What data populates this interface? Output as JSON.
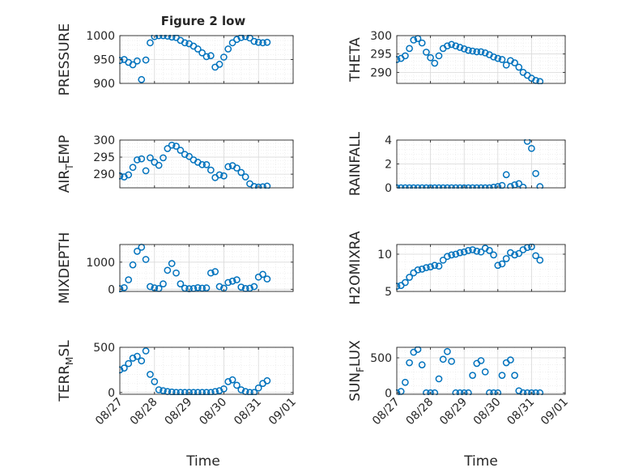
{
  "figure": {
    "title": "Figure 2 low",
    "xlabel": "Time",
    "marker_color": "#0072BD",
    "grid_color": "#d9d9d9",
    "axis_color": "#262626"
  },
  "x_tick_labels": [
    "08/27",
    "08/28",
    "08/29",
    "08/30",
    "08/31",
    "09/01"
  ],
  "chart_data": [
    {
      "type": "scatter",
      "ylabel": "PRESSURE",
      "ylim": [
        900,
        1000
      ],
      "yticks": [
        900,
        950,
        1000
      ],
      "x_tick_labels_shown": false,
      "grid": true,
      "x": [
        "08/27 00:00",
        "08/27 03:00",
        "08/27 06:00",
        "08/27 09:00",
        "08/27 12:00",
        "08/27 15:00",
        "08/27 18:00",
        "08/27 21:00",
        "08/28 00:00",
        "08/28 03:00",
        "08/28 06:00",
        "08/28 09:00",
        "08/28 12:00",
        "08/28 15:00",
        "08/28 18:00",
        "08/28 21:00",
        "08/29 00:00",
        "08/29 03:00",
        "08/29 06:00",
        "08/29 09:00",
        "08/29 12:00",
        "08/29 15:00",
        "08/29 18:00",
        "08/29 21:00",
        "08/30 00:00",
        "08/30 03:00",
        "08/30 06:00",
        "08/30 09:00",
        "08/30 12:00",
        "08/30 15:00",
        "08/30 18:00",
        "08/30 21:00",
        "08/31 00:00",
        "08/31 03:00",
        "08/31 06:00"
      ],
      "y": [
        948,
        950,
        944,
        939,
        947,
        908,
        949,
        985,
        998,
        1000,
        1000,
        999,
        997,
        996,
        990,
        985,
        983,
        978,
        972,
        964,
        956,
        958,
        934,
        940,
        955,
        972,
        985,
        992,
        996,
        998,
        995,
        988,
        986,
        985,
        986
      ]
    },
    {
      "type": "scatter",
      "ylabel": "THETA",
      "ylim": [
        287,
        300
      ],
      "yticks": [
        290,
        295,
        300
      ],
      "x_tick_labels_shown": false,
      "grid": true,
      "x": [
        "08/27 00:00",
        "08/27 03:00",
        "08/27 06:00",
        "08/27 09:00",
        "08/27 12:00",
        "08/27 15:00",
        "08/27 18:00",
        "08/27 21:00",
        "08/28 00:00",
        "08/28 03:00",
        "08/28 06:00",
        "08/28 09:00",
        "08/28 12:00",
        "08/28 15:00",
        "08/28 18:00",
        "08/28 21:00",
        "08/29 00:00",
        "08/29 03:00",
        "08/29 06:00",
        "08/29 09:00",
        "08/29 12:00",
        "08/29 15:00",
        "08/29 18:00",
        "08/29 21:00",
        "08/30 00:00",
        "08/30 03:00",
        "08/30 06:00",
        "08/30 09:00",
        "08/30 12:00",
        "08/30 15:00",
        "08/30 18:00",
        "08/30 21:00",
        "08/31 00:00",
        "08/31 03:00",
        "08/31 06:00"
      ],
      "y": [
        293.5,
        293.8,
        294.5,
        296.5,
        298.8,
        299.2,
        298.0,
        295.5,
        294.0,
        292.5,
        294.5,
        296.5,
        297.2,
        297.6,
        297.2,
        296.8,
        296.4,
        296.0,
        295.8,
        295.6,
        295.6,
        295.3,
        294.8,
        294.2,
        293.8,
        293.5,
        292.0,
        293.2,
        292.6,
        291.4,
        290.0,
        289.2,
        288.4,
        287.8,
        287.5
      ]
    },
    {
      "type": "scatter",
      "ylabel": "AIR_TEMP",
      "ylim": [
        286,
        300
      ],
      "yticks": [
        290,
        295,
        300
      ],
      "x_tick_labels_shown": false,
      "grid": true,
      "x": [
        "08/27 00:00",
        "08/27 03:00",
        "08/27 06:00",
        "08/27 09:00",
        "08/27 12:00",
        "08/27 15:00",
        "08/27 18:00",
        "08/27 21:00",
        "08/28 00:00",
        "08/28 03:00",
        "08/28 06:00",
        "08/28 09:00",
        "08/28 12:00",
        "08/28 15:00",
        "08/28 18:00",
        "08/28 21:00",
        "08/29 00:00",
        "08/29 03:00",
        "08/29 06:00",
        "08/29 09:00",
        "08/29 12:00",
        "08/29 15:00",
        "08/29 18:00",
        "08/29 21:00",
        "08/30 00:00",
        "08/30 03:00",
        "08/30 06:00",
        "08/30 09:00",
        "08/30 12:00",
        "08/30 15:00",
        "08/30 18:00",
        "08/30 21:00",
        "08/31 00:00",
        "08/31 03:00",
        "08/31 06:00"
      ],
      "y": [
        289.5,
        289.2,
        289.8,
        292.0,
        294.2,
        294.5,
        291.0,
        294.8,
        293.5,
        292.6,
        294.8,
        297.5,
        298.5,
        298.2,
        297.0,
        295.8,
        295.2,
        294.2,
        293.5,
        292.8,
        292.8,
        291.2,
        289.0,
        289.8,
        289.5,
        292.2,
        292.5,
        291.8,
        290.5,
        289.2,
        287.2,
        286.4,
        286.2,
        286.3,
        286.5
      ]
    },
    {
      "type": "scatter",
      "ylabel": "RAINFALL",
      "ylim": [
        0,
        4
      ],
      "yticks": [
        0,
        2,
        4
      ],
      "x_tick_labels_shown": false,
      "grid": true,
      "x": [
        "08/27 00:00",
        "08/27 03:00",
        "08/27 06:00",
        "08/27 09:00",
        "08/27 12:00",
        "08/27 15:00",
        "08/27 18:00",
        "08/27 21:00",
        "08/28 00:00",
        "08/28 03:00",
        "08/28 06:00",
        "08/28 09:00",
        "08/28 12:00",
        "08/28 15:00",
        "08/28 18:00",
        "08/28 21:00",
        "08/29 00:00",
        "08/29 03:00",
        "08/29 06:00",
        "08/29 09:00",
        "08/29 12:00",
        "08/29 15:00",
        "08/29 18:00",
        "08/29 21:00",
        "08/30 00:00",
        "08/30 03:00",
        "08/30 06:00",
        "08/30 09:00",
        "08/30 12:00",
        "08/30 15:00",
        "08/30 18:00",
        "08/30 21:00",
        "08/31 00:00",
        "08/31 03:00",
        "08/31 06:00"
      ],
      "y": [
        0,
        0,
        0,
        0,
        0,
        0,
        0,
        0,
        0,
        0,
        0,
        0,
        0,
        0,
        0,
        0,
        0,
        0,
        0,
        0,
        0,
        0,
        0,
        0.05,
        0.1,
        0.2,
        1.1,
        0.1,
        0.25,
        0.35,
        0.05,
        3.9,
        3.3,
        1.2,
        0.1
      ]
    },
    {
      "type": "scatter",
      "ylabel": "MIXDEPTH",
      "ylim": [
        -80,
        1650
      ],
      "yticks": [
        0,
        1000
      ],
      "x_tick_labels_shown": false,
      "grid": true,
      "x": [
        "08/27 00:00",
        "08/27 03:00",
        "08/27 06:00",
        "08/27 09:00",
        "08/27 12:00",
        "08/27 15:00",
        "08/27 18:00",
        "08/27 21:00",
        "08/28 00:00",
        "08/28 03:00",
        "08/28 06:00",
        "08/28 09:00",
        "08/28 12:00",
        "08/28 15:00",
        "08/28 18:00",
        "08/28 21:00",
        "08/29 00:00",
        "08/29 03:00",
        "08/29 06:00",
        "08/29 09:00",
        "08/29 12:00",
        "08/29 15:00",
        "08/29 18:00",
        "08/29 21:00",
        "08/30 00:00",
        "08/30 03:00",
        "08/30 06:00",
        "08/30 09:00",
        "08/30 12:00",
        "08/30 15:00",
        "08/30 18:00",
        "08/30 21:00",
        "08/31 00:00",
        "08/31 03:00",
        "08/31 06:00"
      ],
      "y": [
        20,
        60,
        350,
        900,
        1400,
        1550,
        1100,
        100,
        50,
        30,
        200,
        700,
        950,
        600,
        200,
        40,
        20,
        30,
        60,
        40,
        50,
        600,
        650,
        100,
        40,
        250,
        300,
        350,
        80,
        30,
        40,
        100,
        450,
        550,
        380
      ]
    },
    {
      "type": "scatter",
      "ylabel": "H2OMIXRA",
      "ylim": [
        5,
        11.3
      ],
      "yticks": [
        5,
        10
      ],
      "x_tick_labels_shown": false,
      "grid": true,
      "x": [
        "08/27 00:00",
        "08/27 03:00",
        "08/27 06:00",
        "08/27 09:00",
        "08/27 12:00",
        "08/27 15:00",
        "08/27 18:00",
        "08/27 21:00",
        "08/28 00:00",
        "08/28 03:00",
        "08/28 06:00",
        "08/28 09:00",
        "08/28 12:00",
        "08/28 15:00",
        "08/28 18:00",
        "08/28 21:00",
        "08/29 00:00",
        "08/29 03:00",
        "08/29 06:00",
        "08/29 09:00",
        "08/29 12:00",
        "08/29 15:00",
        "08/29 18:00",
        "08/29 21:00",
        "08/30 00:00",
        "08/30 03:00",
        "08/30 06:00",
        "08/30 09:00",
        "08/30 12:00",
        "08/30 15:00",
        "08/30 18:00",
        "08/30 21:00",
        "08/31 00:00",
        "08/31 03:00",
        "08/31 06:00"
      ],
      "y": [
        5.7,
        5.8,
        6.2,
        6.9,
        7.5,
        7.9,
        8.0,
        8.2,
        8.3,
        8.5,
        8.4,
        9.2,
        9.7,
        9.9,
        10.0,
        10.2,
        10.3,
        10.5,
        10.6,
        10.4,
        10.3,
        10.8,
        10.5,
        9.9,
        8.5,
        8.7,
        9.4,
        10.2,
        9.9,
        10.1,
        10.6,
        10.9,
        11.0,
        9.8,
        9.2
      ]
    },
    {
      "type": "scatter",
      "ylabel": "TERR_MSL",
      "ylim": [
        -20,
        500
      ],
      "yticks": [
        0,
        500
      ],
      "x_tick_labels_shown": true,
      "grid": true,
      "x": [
        "08/27 00:00",
        "08/27 03:00",
        "08/27 06:00",
        "08/27 09:00",
        "08/27 12:00",
        "08/27 15:00",
        "08/27 18:00",
        "08/27 21:00",
        "08/28 00:00",
        "08/28 03:00",
        "08/28 06:00",
        "08/28 09:00",
        "08/28 12:00",
        "08/28 15:00",
        "08/28 18:00",
        "08/28 21:00",
        "08/29 00:00",
        "08/29 03:00",
        "08/29 06:00",
        "08/29 09:00",
        "08/29 12:00",
        "08/29 15:00",
        "08/29 18:00",
        "08/29 21:00",
        "08/30 00:00",
        "08/30 03:00",
        "08/30 06:00",
        "08/30 09:00",
        "08/30 12:00",
        "08/30 15:00",
        "08/30 18:00",
        "08/30 21:00",
        "08/31 00:00",
        "08/31 03:00",
        "08/31 06:00"
      ],
      "y": [
        250,
        270,
        320,
        380,
        400,
        350,
        460,
        200,
        120,
        30,
        20,
        10,
        5,
        0,
        0,
        0,
        0,
        0,
        0,
        0,
        0,
        0,
        10,
        20,
        40,
        120,
        140,
        80,
        30,
        10,
        0,
        0,
        50,
        100,
        130
      ]
    },
    {
      "type": "scatter",
      "ylabel": "SUN_FLUX",
      "ylim": [
        -20,
        650
      ],
      "yticks": [
        0,
        500
      ],
      "x_tick_labels_shown": true,
      "grid": true,
      "x": [
        "08/27 00:00",
        "08/27 03:00",
        "08/27 06:00",
        "08/27 09:00",
        "08/27 12:00",
        "08/27 15:00",
        "08/27 18:00",
        "08/27 21:00",
        "08/28 00:00",
        "08/28 03:00",
        "08/28 06:00",
        "08/28 09:00",
        "08/28 12:00",
        "08/28 15:00",
        "08/28 18:00",
        "08/28 21:00",
        "08/29 00:00",
        "08/29 03:00",
        "08/29 06:00",
        "08/29 09:00",
        "08/29 12:00",
        "08/29 15:00",
        "08/29 18:00",
        "08/29 21:00",
        "08/30 00:00",
        "08/30 03:00",
        "08/30 06:00",
        "08/30 09:00",
        "08/30 12:00",
        "08/30 15:00",
        "08/30 18:00",
        "08/30 21:00",
        "08/31 00:00",
        "08/31 03:00",
        "08/31 06:00"
      ],
      "y": [
        0,
        20,
        150,
        430,
        580,
        620,
        400,
        0,
        0,
        0,
        200,
        480,
        590,
        450,
        0,
        0,
        0,
        0,
        250,
        420,
        460,
        300,
        0,
        0,
        0,
        250,
        430,
        470,
        250,
        30,
        0,
        0,
        0,
        0,
        0
      ]
    }
  ]
}
